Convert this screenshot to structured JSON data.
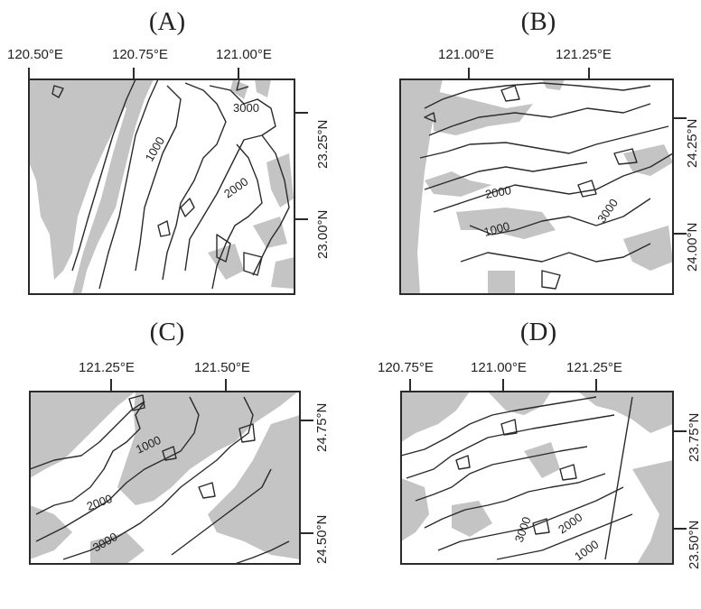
{
  "panels": [
    {
      "title": "(A)",
      "lon_labels": [
        "120.50°E",
        "120.75°E",
        "121.00°E"
      ],
      "lat_labels": [
        "23.25°N",
        "23.00°N"
      ],
      "contour_labels": [
        "3000",
        "1000",
        "2000"
      ]
    },
    {
      "title": "(B)",
      "lon_labels": [
        "121.00°E",
        "121.25°E"
      ],
      "lat_labels": [
        "24.25°N",
        "24.00°N"
      ],
      "contour_labels": [
        "2000",
        "3000",
        "1000"
      ]
    },
    {
      "title": "(C)",
      "lon_labels": [
        "121.25°E",
        "121.50°E"
      ],
      "lat_labels": [
        "24.75°N",
        "24.50°N"
      ],
      "contour_labels": [
        "1000",
        "2000",
        "3000"
      ]
    },
    {
      "title": "(D)",
      "lon_labels": [
        "120.75°E",
        "121.00°E",
        "121.25°E"
      ],
      "lat_labels": [
        "23.75°N",
        "23.50°N"
      ],
      "contour_labels": [
        "3000",
        "2000",
        "1000"
      ]
    }
  ]
}
